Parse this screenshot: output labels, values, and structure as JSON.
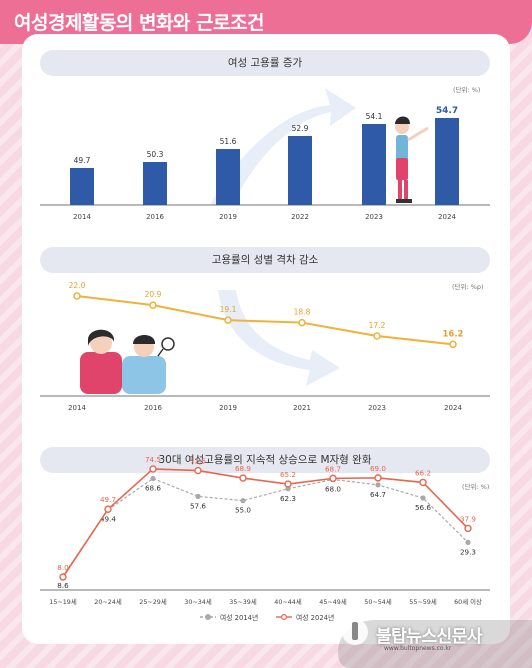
{
  "title": "여성경제활동의 변화와 근로조건",
  "watermark": {
    "name": "불탑뉴스신문사",
    "url": "www.bultopnews.co.kr"
  },
  "chart_data": [
    {
      "type": "bar",
      "title": "여성 고용률 증가",
      "unit_label": "(단위: %)",
      "categories": [
        "2014",
        "2016",
        "2019",
        "2022",
        "2023",
        "2024"
      ],
      "values": [
        49.7,
        50.3,
        51.6,
        52.9,
        54.1,
        54.7
      ],
      "value_labels": [
        "49.7",
        "50.3",
        "51.6",
        "52.9",
        "54.1",
        "54.7"
      ],
      "ylim": [
        46,
        56
      ],
      "color": "#2f5aa8",
      "highlight_last": true
    },
    {
      "type": "line",
      "title": "고용률의 성별 격차 감소",
      "unit_label": "(단위: %p)",
      "categories": [
        "2014",
        "2016",
        "2019",
        "2021",
        "2023",
        "2024"
      ],
      "values": [
        22.0,
        20.9,
        19.1,
        18.8,
        17.2,
        16.2
      ],
      "value_labels": [
        "22.0",
        "20.9",
        "19.1",
        "18.8",
        "17.2",
        "16.2"
      ],
      "ylim": [
        10,
        28
      ],
      "color": "#f0b23a",
      "label_color": "#e2a32c",
      "highlight_last": true
    },
    {
      "type": "line",
      "title": "30대 여성고용률의 지속적 상승으로 M자형 완화",
      "unit_label": "(단위: %)",
      "categories": [
        "15~19세",
        "20~24세",
        "25~29세",
        "30~34세",
        "35~39세",
        "40~44세",
        "45~49세",
        "50~54세",
        "55~59세",
        "60세 이상"
      ],
      "ylim": [
        0,
        80
      ],
      "series": [
        {
          "name": "여성 2014년",
          "values": [
            8.6,
            49.4,
            68.6,
            57.6,
            55.0,
            62.3,
            68.0,
            64.7,
            56.6,
            29.3
          ],
          "value_labels": [
            "8.6",
            "49.4",
            "68.6",
            "57.6",
            "55.0",
            "62.3",
            "68.0",
            "64.7",
            "56.6",
            "29.3"
          ],
          "color": "#a9a9a9",
          "label_color": "#333333",
          "dashed": true
        },
        {
          "name": "여성 2024년",
          "values": [
            8.0,
            49.7,
            74.5,
            73.5,
            68.9,
            65.2,
            68.7,
            69.0,
            66.2,
            37.9
          ],
          "value_labels": [
            "8.0",
            "49.7",
            "74.5",
            "73.5",
            "68.9",
            "65.2",
            "68.7",
            "69.0",
            "66.2",
            "37.9"
          ],
          "color": "#e8664d",
          "label_color": "#e8664d",
          "dashed": false
        }
      ]
    }
  ]
}
